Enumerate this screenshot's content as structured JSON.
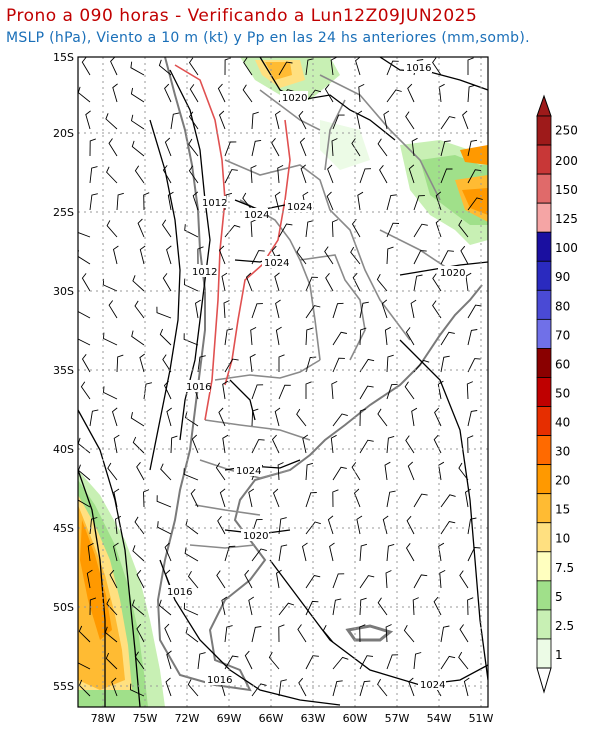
{
  "header": {
    "title": "Prono a 090 horas - Verificando a Lun12Z09JUN2025",
    "subtitle": "MSLP (hPa), Viento a 10 m (kt) y Pp en las 24 hs anteriores (mm,somb)."
  },
  "map": {
    "lat_labels": [
      "15S",
      "20S",
      "25S",
      "30S",
      "35S",
      "40S",
      "45S",
      "50S",
      "55S"
    ],
    "lon_labels": [
      "78W",
      "75W",
      "72W",
      "69W",
      "66W",
      "63W",
      "60W",
      "57W",
      "54W",
      "51W"
    ],
    "isobar_labels": [
      {
        "id": "p1016-ne",
        "text": "1016"
      },
      {
        "id": "p1020-n",
        "text": "1020"
      },
      {
        "id": "p1012-a",
        "text": "1012"
      },
      {
        "id": "p1024-a",
        "text": "1024"
      },
      {
        "id": "p1024-b",
        "text": "1024"
      },
      {
        "id": "p1024-c",
        "text": "1024"
      },
      {
        "id": "p1012-b",
        "text": "1012"
      },
      {
        "id": "p1020-e",
        "text": "1020"
      },
      {
        "id": "p1016-c",
        "text": "1016"
      },
      {
        "id": "p1024-d",
        "text": "1024"
      },
      {
        "id": "p1020-s",
        "text": "1020"
      },
      {
        "id": "p1016-sw",
        "text": "1016"
      },
      {
        "id": "p1016-s",
        "text": "1016"
      },
      {
        "id": "p1024-se",
        "text": "1024"
      }
    ],
    "colors": {
      "land": "#ffffff",
      "borders": "#7a7a7a",
      "isobars": "#000000",
      "grid": "#9a9a9a",
      "red_contour": "#e05050"
    }
  },
  "colorbar": {
    "levels": [
      "250",
      "200",
      "150",
      "125",
      "100",
      "90",
      "80",
      "70",
      "60",
      "50",
      "40",
      "30",
      "20",
      "15",
      "10",
      "7.5",
      "5",
      "2.5",
      "1"
    ],
    "colors": [
      "#9e1a1a",
      "#c83737",
      "#e06a6a",
      "#f5a5a5",
      "#1a0fa0",
      "#2a2abf",
      "#4a4ad5",
      "#7070e8",
      "#8a0000",
      "#bf0000",
      "#e62e00",
      "#ff6a00",
      "#ff9900",
      "#ffbb33",
      "#ffe080",
      "#ffffbf",
      "#a0e08a",
      "#c8f0b4",
      "#ecfbe6"
    ]
  }
}
